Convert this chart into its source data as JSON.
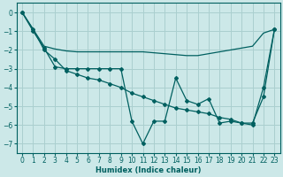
{
  "xlabel": "Humidex (Indice chaleur)",
  "background_color": "#cce8e8",
  "grid_color": "#aacfcf",
  "line_color": "#006060",
  "xlim": [
    -0.5,
    23.5
  ],
  "ylim": [
    -7.5,
    0.5
  ],
  "xticks": [
    0,
    1,
    2,
    3,
    4,
    5,
    6,
    7,
    8,
    9,
    10,
    11,
    12,
    13,
    14,
    15,
    16,
    17,
    18,
    19,
    20,
    21,
    22,
    23
  ],
  "yticks": [
    0,
    -1,
    -2,
    -3,
    -4,
    -5,
    -6,
    -7
  ],
  "series1_x": [
    0,
    1,
    2,
    3,
    4,
    5,
    6,
    7,
    8,
    9,
    10,
    11,
    12,
    13,
    14,
    15,
    16,
    17,
    18,
    19,
    20,
    21,
    22,
    23
  ],
  "series1_y": [
    0.0,
    -0.9,
    -1.8,
    -1.95,
    -2.05,
    -2.1,
    -2.1,
    -2.1,
    -2.1,
    -2.1,
    -2.1,
    -2.1,
    -2.15,
    -2.2,
    -2.25,
    -2.3,
    -2.3,
    -2.2,
    -2.1,
    -2.0,
    -1.9,
    -1.8,
    -1.1,
    -0.9
  ],
  "series2_x": [
    0,
    1,
    2,
    3,
    4,
    5,
    6,
    7,
    8,
    9,
    10,
    11,
    12,
    13,
    14,
    15,
    16,
    17,
    18,
    19,
    20,
    21,
    22,
    23
  ],
  "series2_y": [
    0.0,
    -1.0,
    -1.9,
    -2.9,
    -3.0,
    -3.0,
    -3.0,
    -3.0,
    -3.0,
    -3.0,
    -5.8,
    -7.0,
    -5.8,
    -5.8,
    -3.5,
    -4.7,
    -4.9,
    -4.6,
    -5.9,
    -5.8,
    -5.9,
    -5.9,
    -4.5,
    -0.9
  ],
  "series3_x": [
    0,
    1,
    2,
    3,
    4,
    5,
    6,
    7,
    8,
    9,
    10,
    11,
    12,
    13,
    14,
    15,
    16,
    17,
    18,
    19,
    20,
    21,
    22,
    23
  ],
  "series3_y": [
    0.0,
    -0.9,
    -2.0,
    -2.5,
    -3.1,
    -3.3,
    -3.5,
    -3.6,
    -3.8,
    -4.0,
    -4.3,
    -4.5,
    -4.7,
    -4.9,
    -5.1,
    -5.2,
    -5.3,
    -5.4,
    -5.6,
    -5.7,
    -5.9,
    -6.0,
    -4.0,
    -0.9
  ],
  "marker": "D",
  "markersize": 2.0,
  "linewidth": 0.9,
  "tick_fontsize": 5.5,
  "xlabel_fontsize": 6.0
}
